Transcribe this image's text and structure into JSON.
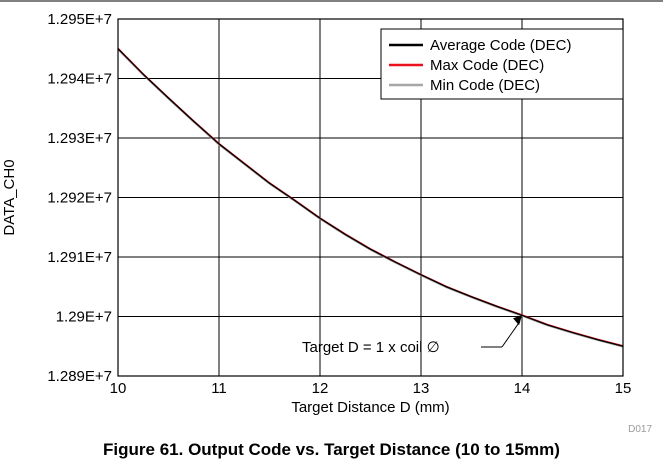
{
  "chart_data": {
    "type": "line",
    "xlabel": "Target Distance D (mm)",
    "ylabel": "DATA_CH0",
    "xlim": [
      10,
      15
    ],
    "ylim": [
      12890000,
      12950000
    ],
    "x_ticks": [
      10,
      11,
      12,
      13,
      14,
      15
    ],
    "x_tick_labels": [
      "10",
      "11",
      "12",
      "13",
      "14",
      "15"
    ],
    "y_ticks": [
      12890000,
      12900000,
      12910000,
      12920000,
      12930000,
      12940000,
      12950000
    ],
    "y_tick_labels": [
      "1.289E+7",
      "1.29E+7",
      "1.291E+7",
      "1.292E+7",
      "1.293E+7",
      "1.294E+7",
      "1.295E+7"
    ],
    "grid": true,
    "legend_position": "top-right",
    "x": [
      10,
      10.25,
      10.5,
      10.75,
      11,
      11.25,
      11.5,
      11.75,
      12,
      12.25,
      12.5,
      12.75,
      13,
      13.25,
      13.5,
      13.75,
      14,
      14.25,
      14.5,
      14.75,
      15
    ],
    "series": [
      {
        "name": "Average Code (DEC)",
        "color": "#000000",
        "values": [
          12945000,
          12940700,
          12936700,
          12932800,
          12929000,
          12925700,
          12922400,
          12919500,
          12916500,
          12913800,
          12911300,
          12909100,
          12907000,
          12905000,
          12903300,
          12901700,
          12900200,
          12898600,
          12897300,
          12896100,
          12895000
        ]
      },
      {
        "name": "Max Code (DEC)",
        "color": "#e8111c",
        "values": [
          12945050,
          12940750,
          12936750,
          12932850,
          12929050,
          12925750,
          12922450,
          12919550,
          12916550,
          12913850,
          12911350,
          12909150,
          12907050,
          12905050,
          12903350,
          12901750,
          12900250,
          12898650,
          12897350,
          12896150,
          12895050
        ]
      },
      {
        "name": "Min Code (DEC)",
        "color": "#a6a6a6",
        "values": [
          12944950,
          12940650,
          12936650,
          12932750,
          12928950,
          12925650,
          12922350,
          12919450,
          12916450,
          12913750,
          12911250,
          12909050,
          12906950,
          12904950,
          12903250,
          12901650,
          12900150,
          12898550,
          12897250,
          12896050,
          12894950
        ]
      }
    ],
    "annotations": [
      {
        "text": "Target D = 1 x coil ∅",
        "x": 14,
        "y": 12900200
      }
    ],
    "figure_id": "D017"
  },
  "caption": "Figure 61. Output Code vs. Target Distance (10 to 15mm)"
}
